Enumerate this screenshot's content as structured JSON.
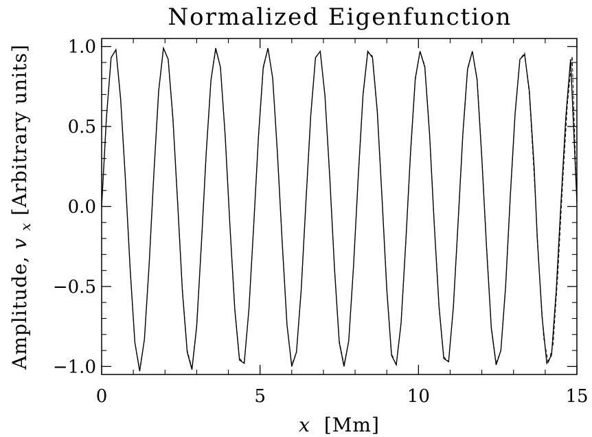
{
  "chart_data": {
    "type": "line",
    "title": "Normalized Eigenfunction",
    "xlabel": {
      "var": "x",
      "unit": "[Mm]"
    },
    "ylabel": {
      "prefix": "Amplitude, ",
      "var": "v",
      "sub": "x",
      "suffix": " [Arbitrary units]"
    },
    "xlim": [
      0,
      15
    ],
    "ylim": [
      -1.05,
      1.05
    ],
    "x_ticks": [
      0,
      5,
      10,
      15
    ],
    "x_tick_labels": [
      "0",
      "5",
      "10",
      "15"
    ],
    "y_ticks": [
      1.0,
      0.5,
      0.0,
      -0.5,
      -1.0
    ],
    "y_tick_labels": [
      "1.0",
      "0.5",
      "0.0",
      "−0.5",
      "−1.0"
    ],
    "x_minor_step": 1,
    "y_minor_step": 0.1,
    "grid": false,
    "series": [
      {
        "style": "solid",
        "x": [
          0.0,
          0.15,
          0.3,
          0.45,
          0.6,
          0.75,
          0.9,
          1.05,
          1.2,
          1.35,
          1.5,
          1.65,
          1.8,
          1.95,
          2.1,
          2.25,
          2.4,
          2.55,
          2.7,
          2.85,
          3.0,
          3.15,
          3.3,
          3.45,
          3.6,
          3.75,
          3.9,
          4.05,
          4.2,
          4.35,
          4.5,
          4.65,
          4.8,
          4.95,
          5.1,
          5.25,
          5.4,
          5.55,
          5.7,
          5.85,
          6.0,
          6.15,
          6.3,
          6.45,
          6.6,
          6.75,
          6.9,
          7.05,
          7.2,
          7.35,
          7.5,
          7.65,
          7.8,
          7.95,
          8.1,
          8.25,
          8.4,
          8.55,
          8.7,
          8.85,
          9.0,
          9.15,
          9.3,
          9.45,
          9.6,
          9.75,
          9.9,
          10.05,
          10.2,
          10.35,
          10.5,
          10.65,
          10.8,
          10.95,
          11.1,
          11.25,
          11.4,
          11.55,
          11.7,
          11.85,
          12.0,
          12.15,
          12.3,
          12.45,
          12.6,
          12.75,
          12.9,
          13.05,
          13.2,
          13.35,
          13.5,
          13.65,
          13.75,
          13.9,
          14.05,
          14.2,
          14.35,
          14.5,
          14.65,
          14.8,
          15.0
        ],
        "y": [
          0.0,
          0.55,
          0.93,
          0.98,
          0.67,
          0.17,
          -0.39,
          -0.85,
          -1.03,
          -0.83,
          -0.36,
          0.21,
          0.72,
          0.99,
          0.92,
          0.55,
          0.02,
          -0.53,
          -0.91,
          -1.02,
          -0.75,
          -0.23,
          0.33,
          0.79,
          0.99,
          0.87,
          0.44,
          -0.12,
          -0.64,
          -0.96,
          -0.98,
          -0.64,
          -0.12,
          0.44,
          0.87,
          0.99,
          0.8,
          0.33,
          -0.23,
          -0.74,
          -1.0,
          -0.91,
          -0.52,
          0.04,
          0.57,
          0.93,
          0.97,
          0.69,
          0.18,
          -0.39,
          -0.85,
          -1.0,
          -0.84,
          -0.37,
          0.19,
          0.7,
          0.97,
          0.93,
          0.59,
          0.05,
          -0.52,
          -0.93,
          -0.99,
          -0.73,
          -0.22,
          0.34,
          0.8,
          0.97,
          0.87,
          0.45,
          -0.12,
          -0.63,
          -0.95,
          -0.97,
          -0.63,
          -0.1,
          0.45,
          0.86,
          0.97,
          0.79,
          0.3,
          -0.26,
          -0.76,
          -0.99,
          -0.9,
          -0.5,
          0.07,
          0.58,
          0.92,
          0.95,
          0.72,
          0.25,
          -0.2,
          -0.69,
          -0.98,
          -0.93,
          -0.52,
          0.03,
          0.56,
          0.92,
          0.03
        ]
      },
      {
        "style": "dashed",
        "x": [
          0.0,
          0.15,
          0.3,
          0.45,
          0.6,
          0.75,
          0.9,
          1.05,
          1.2,
          1.35,
          1.5,
          1.65,
          1.8,
          1.95,
          2.1,
          2.25,
          2.4,
          2.55,
          2.7,
          2.85,
          3.0,
          3.15,
          3.3,
          3.45,
          3.6,
          3.75,
          3.9,
          4.05,
          4.2,
          4.35,
          4.5,
          4.65,
          4.8,
          4.95,
          5.1,
          5.25,
          5.4,
          5.55,
          5.7,
          5.85,
          6.0,
          6.15,
          6.3,
          6.45,
          6.6,
          6.75,
          6.9,
          7.05,
          7.2,
          7.35,
          7.5,
          7.65,
          7.8,
          7.95,
          8.1,
          8.25,
          8.4,
          8.55,
          8.7,
          8.85,
          9.0,
          9.15,
          9.3,
          9.45,
          9.6,
          9.75,
          9.9,
          10.05,
          10.2,
          10.35,
          10.5,
          10.65,
          10.8,
          10.95,
          11.1,
          11.25,
          11.4,
          11.55,
          11.7,
          11.85,
          12.0,
          12.15,
          12.3,
          12.45,
          12.6,
          12.75,
          12.9,
          13.05,
          13.2,
          13.35,
          13.5,
          13.65,
          13.8,
          13.95,
          14.1,
          14.25,
          14.4,
          14.55,
          14.7,
          14.85,
          15.0
        ],
        "y": [
          0.0,
          0.55,
          0.93,
          0.98,
          0.67,
          0.17,
          -0.39,
          -0.85,
          -1.02,
          -0.83,
          -0.36,
          0.21,
          0.72,
          0.99,
          0.92,
          0.54,
          0.02,
          -0.52,
          -0.9,
          -1.01,
          -0.74,
          -0.23,
          0.33,
          0.79,
          0.98,
          0.87,
          0.44,
          -0.12,
          -0.63,
          -0.95,
          -0.98,
          -0.64,
          -0.12,
          0.43,
          0.86,
          0.99,
          0.8,
          0.33,
          -0.23,
          -0.74,
          -0.99,
          -0.91,
          -0.52,
          0.04,
          0.57,
          0.93,
          0.97,
          0.69,
          0.18,
          -0.39,
          -0.84,
          -0.99,
          -0.84,
          -0.37,
          0.19,
          0.69,
          0.96,
          0.94,
          0.6,
          0.05,
          -0.51,
          -0.92,
          -0.99,
          -0.73,
          -0.22,
          0.33,
          0.79,
          0.97,
          0.88,
          0.46,
          -0.11,
          -0.62,
          -0.94,
          -0.97,
          -0.64,
          -0.11,
          0.44,
          0.85,
          0.97,
          0.8,
          0.31,
          -0.25,
          -0.75,
          -0.98,
          -0.9,
          -0.51,
          0.06,
          0.57,
          0.92,
          0.96,
          0.7,
          0.2,
          -0.36,
          -0.82,
          -0.98,
          -0.86,
          -0.42,
          0.14,
          0.64,
          0.94,
          0.0
        ]
      }
    ]
  }
}
